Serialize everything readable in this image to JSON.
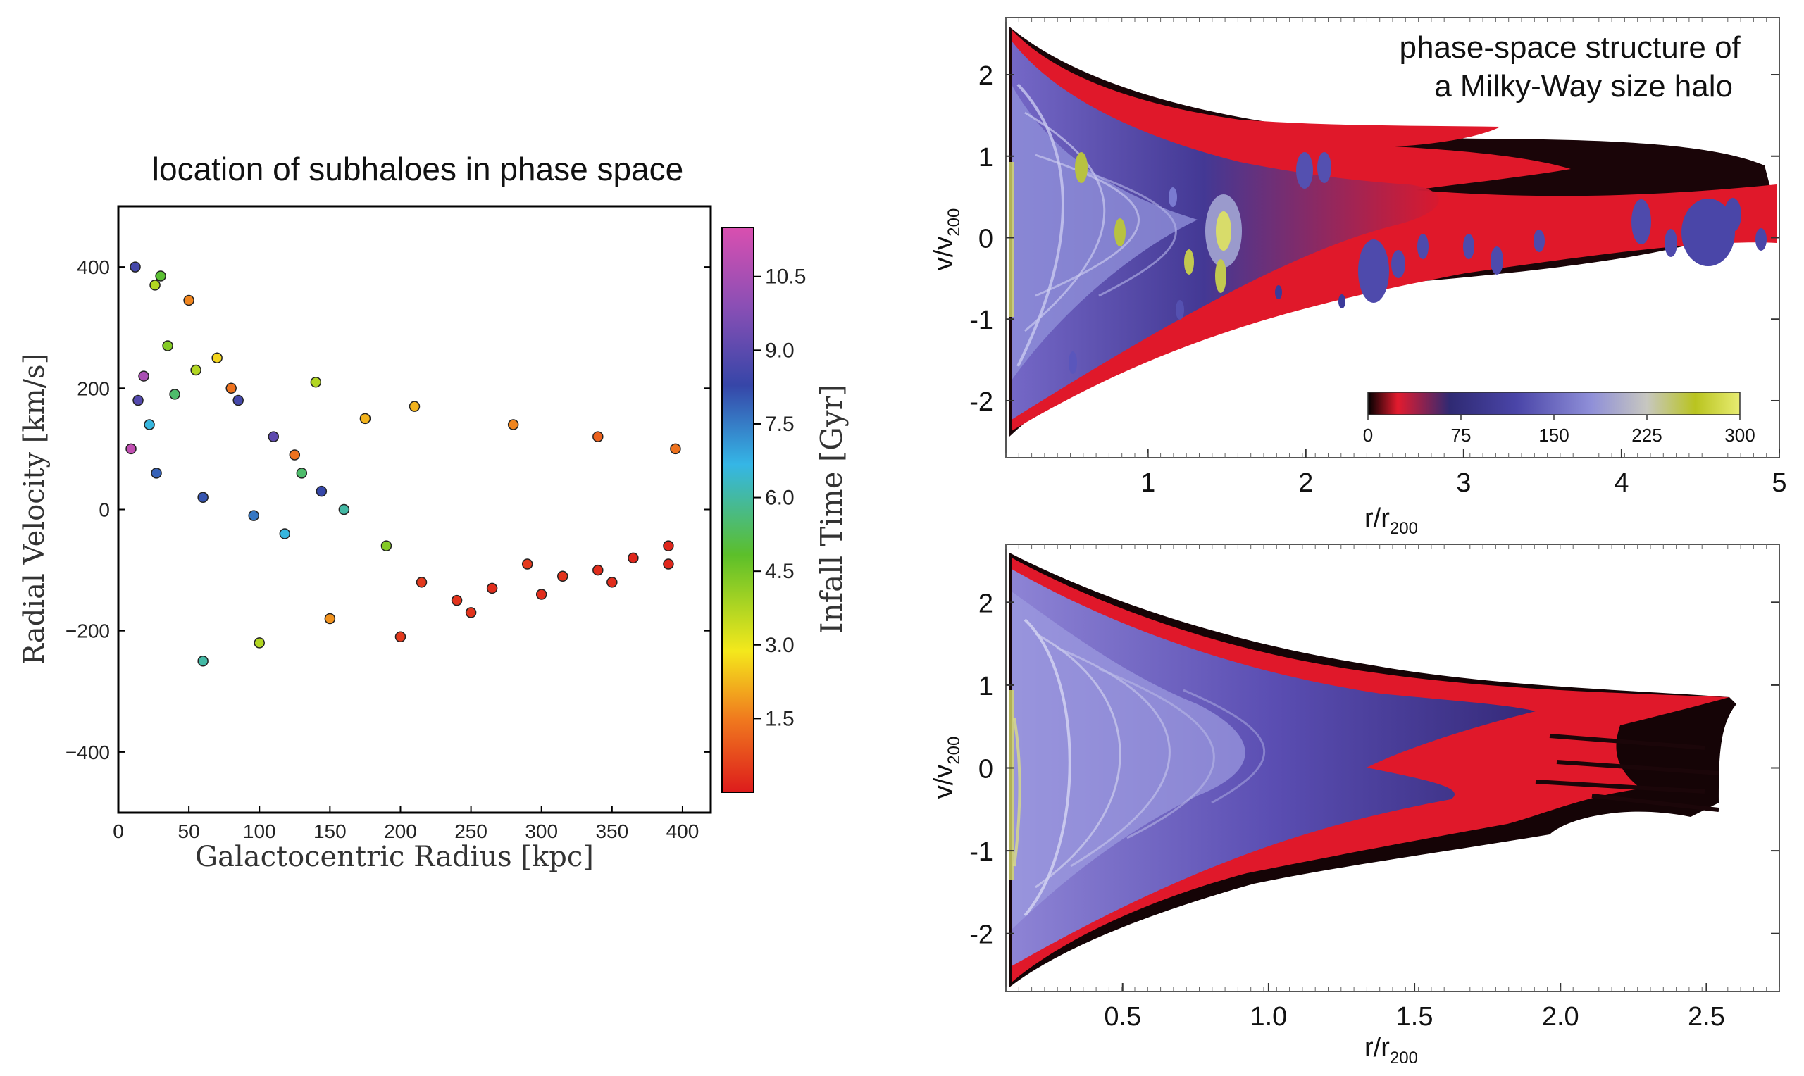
{
  "chart_data": [
    {
      "type": "scatter",
      "title": "location of subhaloes in phase space",
      "xlabel": "Galactocentric Radius [kpc]",
      "ylabel": "Radial Velocity [km/s]",
      "xlim": [
        0,
        420
      ],
      "ylim": [
        -500,
        500
      ],
      "xticks": [
        "0",
        "50",
        "100",
        "150",
        "200",
        "250",
        "300",
        "350",
        "400"
      ],
      "yticks": [
        "−400",
        "−200",
        "0",
        "200",
        "400"
      ],
      "colorbar": {
        "label": "Infall Time [Gyr]",
        "range": [
          0,
          11.5
        ],
        "ticks": [
          "1.5",
          "3.0",
          "4.5",
          "6.0",
          "7.5",
          "9.0",
          "10.5"
        ],
        "colors": [
          "#dd1c1c",
          "#f07a1e",
          "#f4e81c",
          "#5cbf2a",
          "#35b6e6",
          "#3646a8",
          "#8a4fb5",
          "#d94fb0"
        ]
      },
      "grid": false,
      "series": [
        {
          "name": "subhaloes",
          "marker": "circle",
          "x": [
            12,
            30,
            26,
            50,
            35,
            18,
            14,
            22,
            9,
            27,
            60,
            96,
            118,
            144,
            125,
            175,
            40,
            55,
            70,
            85,
            110,
            130,
            160,
            190,
            215,
            240,
            265,
            290,
            315,
            340,
            365,
            390,
            60,
            100,
            150,
            200,
            250,
            300,
            350,
            390,
            80,
            140,
            210,
            280,
            340,
            395
          ],
          "y": [
            400,
            385,
            370,
            345,
            270,
            220,
            180,
            140,
            100,
            60,
            20,
            -10,
            -40,
            30,
            90,
            150,
            190,
            230,
            250,
            180,
            120,
            60,
            0,
            -60,
            -120,
            -150,
            -130,
            -90,
            -110,
            -100,
            -80,
            -60,
            -250,
            -220,
            -180,
            -210,
            -170,
            -140,
            -120,
            -90,
            200,
            210,
            170,
            140,
            120,
            100
          ],
          "infall_gyr": [
            8.5,
            5.0,
            4.0,
            1.8,
            4.5,
            10.5,
            8.8,
            6.5,
            11.0,
            7.8,
            8.0,
            7.5,
            6.5,
            8.2,
            1.5,
            2.5,
            5.5,
            4.0,
            3.0,
            8.5,
            9.0,
            5.5,
            6.0,
            4.5,
            0.5,
            0.4,
            0.3,
            0.5,
            0.4,
            0.3,
            0.2,
            0.2,
            6.0,
            4.0,
            2.0,
            0.5,
            0.4,
            0.3,
            0.3,
            0.2,
            1.5,
            4.0,
            2.5,
            1.8,
            1.2,
            1.5
          ]
        }
      ]
    },
    {
      "type": "heatmap",
      "annotation": "phase-space structure of\na Milky-Way size halo",
      "xlabel": "r/r",
      "xlabel_sub": "200",
      "ylabel": "v/v",
      "ylabel_sub": "200",
      "xlim": [
        0.1,
        5.0
      ],
      "ylim": [
        -2.7,
        2.7
      ],
      "xticks": [
        "1",
        "2",
        "3",
        "4",
        "5"
      ],
      "yticks": [
        "2",
        "1",
        "0",
        "-1",
        "-2"
      ],
      "colorbar": {
        "range": [
          0,
          300
        ],
        "ticks": [
          "0",
          "75",
          "150",
          "225",
          "300"
        ],
        "colors": [
          "#000000",
          "#e31b2e",
          "#2f2a73",
          "#4a45a8",
          "#8f8fd8",
          "#c7c7c0",
          "#b9c41f",
          "#e8ec72"
        ]
      }
    },
    {
      "type": "heatmap",
      "xlabel": "r/r",
      "xlabel_sub": "200",
      "ylabel": "v/v",
      "ylabel_sub": "200",
      "xlim": [
        0.1,
        2.75
      ],
      "ylim": [
        -2.7,
        2.7
      ],
      "xticks": [
        "0.5",
        "1.0",
        "1.5",
        "2.0",
        "2.5"
      ],
      "yticks": [
        "2",
        "1",
        "0",
        "-1",
        "-2"
      ]
    }
  ]
}
